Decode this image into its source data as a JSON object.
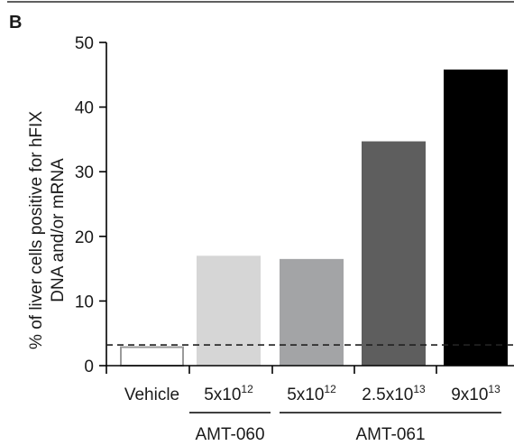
{
  "chart_data": {
    "type": "bar",
    "panel_label": "B",
    "ylabel_lines": [
      "% of liver cells positive for hFIX",
      "DNA and/or mRNA"
    ],
    "ylim": [
      0,
      50
    ],
    "yticks": [
      0,
      10,
      20,
      30,
      40,
      50
    ],
    "reference_line": 3.2,
    "categories": [
      {
        "base": "Vehicle",
        "sup": ""
      },
      {
        "base": "5x10",
        "sup": "12"
      },
      {
        "base": "5x10",
        "sup": "12"
      },
      {
        "base": "2.5x10",
        "sup": "13"
      },
      {
        "base": "9x10",
        "sup": "13"
      }
    ],
    "values": [
      3,
      17,
      16.5,
      34.7,
      45.8
    ],
    "colors": [
      "#ffffff",
      "#d6d6d6",
      "#a3a4a6",
      "#5e5e5e",
      "#000000"
    ],
    "outline_color": "#9a9a9a",
    "groups": [
      {
        "label": "AMT-060",
        "categories": [
          1
        ]
      },
      {
        "label": "AMT-061",
        "categories": [
          2,
          3,
          4
        ]
      }
    ]
  }
}
